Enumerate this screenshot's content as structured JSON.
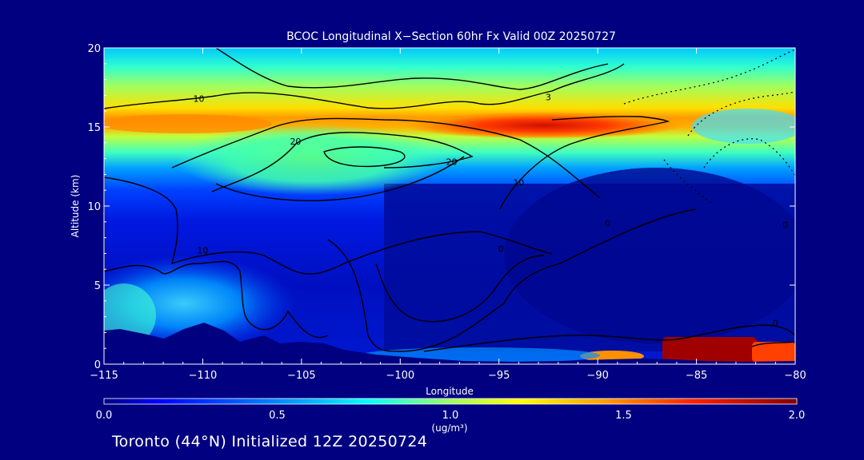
{
  "chart_data": {
    "type": "heatmap",
    "title": "BCOC Longitudinal X−Section 60hr  Fx Valid 00Z 20250727",
    "xlabel": "Longitude",
    "ylabel": "Altitude (km)",
    "xlim": [
      -115,
      -80
    ],
    "ylim": [
      0,
      20
    ],
    "x_ticks": [
      -115,
      -110,
      -105,
      -100,
      -95,
      -90,
      -85,
      -80
    ],
    "x_tick_labels": [
      "−115",
      "−110",
      "−105",
      "−100",
      "−95",
      "−90",
      "−85",
      "−80"
    ],
    "y_ticks": [
      0,
      5,
      10,
      15,
      20
    ],
    "y_tick_labels": [
      "0",
      "5",
      "10",
      "15",
      "20"
    ],
    "colorbar": {
      "min": 0.0,
      "max": 2.0,
      "ticks": [
        0.0,
        0.5,
        1.0,
        1.5,
        2.0
      ],
      "tick_labels": [
        "0.0",
        "0.5",
        "1.0",
        "1.5",
        "2.0"
      ],
      "unit_label": "(ug/m³)",
      "colormap": [
        "#000080",
        "#0000ff",
        "#00b4ff",
        "#00ffff",
        "#b4ff50",
        "#ffff00",
        "#ffa000",
        "#ff2800",
        "#800000"
      ]
    },
    "high_concentration_regions": [
      {
        "lon_range": [
          -115,
          -83
        ],
        "alt_range": [
          14.3,
          16.0
        ],
        "peak_lon": -93,
        "peak_alt": 15.0,
        "peak_value": 1.8
      },
      {
        "lon_range": [
          -86,
          -82.5
        ],
        "alt_range": [
          0.4,
          1.6
        ],
        "peak_lon": -84,
        "peak_alt": 0.9,
        "peak_value": 2.0
      },
      {
        "lon_range": [
          -91,
          -88
        ],
        "alt_range": [
          0.3,
          0.9
        ],
        "peak_lon": -89.5,
        "peak_alt": 0.5,
        "peak_value": 1.5
      },
      {
        "lon_range": [
          -115,
          -103
        ],
        "alt_range": [
          1.5,
          6
        ],
        "peak_lon": -109,
        "peak_alt": 3.5,
        "peak_value": 0.6
      }
    ],
    "contour_labels": [
      {
        "text": "10",
        "lon": -110.2,
        "alt": 16.6
      },
      {
        "text": "20",
        "lon": -105.3,
        "alt": 13.9
      },
      {
        "text": "20",
        "lon": -97.4,
        "alt": 12.6
      },
      {
        "text": "10",
        "lon": -94.0,
        "alt": 11.3
      },
      {
        "text": "3",
        "lon": -92.5,
        "alt": 16.7
      },
      {
        "text": "0",
        "lon": -89.5,
        "alt": 8.7
      },
      {
        "text": "0",
        "lon": -80.5,
        "alt": 8.6
      },
      {
        "text": "10",
        "lon": -110.0,
        "alt": 7.0
      },
      {
        "text": "0",
        "lon": -94.9,
        "alt": 7.1
      },
      {
        "text": "0",
        "lon": -81.0,
        "alt": 2.4
      }
    ]
  },
  "footer": {
    "text": "Toronto (44°N) Initialized 12Z 20250724"
  },
  "colors": {
    "background": "#000080",
    "text": "#ffffff",
    "terrain": "#000080",
    "contour": "#000000"
  }
}
